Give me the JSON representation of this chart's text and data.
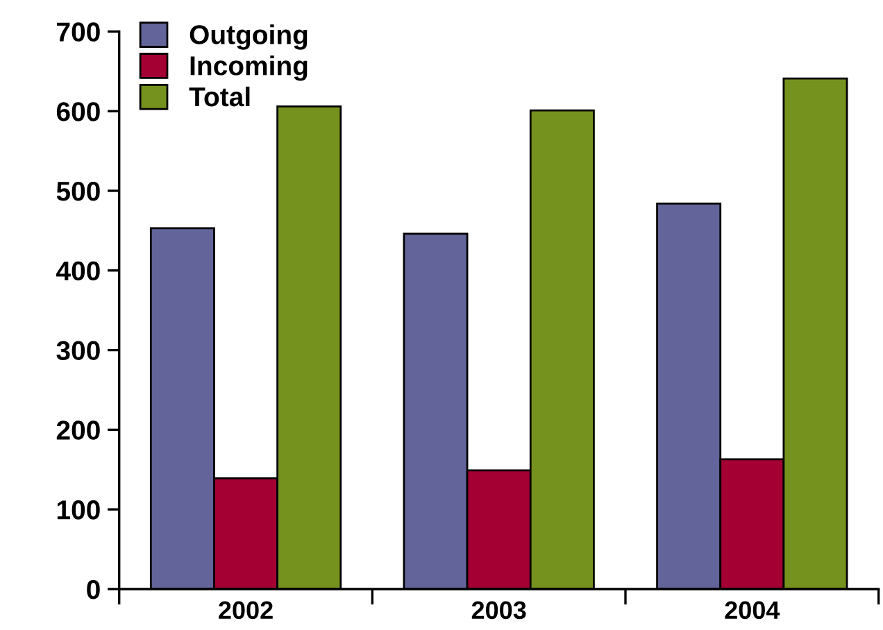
{
  "chart_data": {
    "type": "bar",
    "categories": [
      "2002",
      "2003",
      "2004"
    ],
    "series": [
      {
        "name": "Outgoing",
        "color": "#62649a",
        "values": [
          453,
          446,
          484
        ]
      },
      {
        "name": "Incoming",
        "color": "#a50034",
        "values": [
          139,
          149,
          163
        ]
      },
      {
        "name": "Total",
        "color": "#76921e",
        "values": [
          606,
          601,
          641
        ]
      }
    ],
    "ylim": [
      0,
      700
    ],
    "yticks": [
      0,
      100,
      200,
      300,
      400,
      500,
      600,
      700
    ],
    "grid": false,
    "legend": "top left"
  }
}
